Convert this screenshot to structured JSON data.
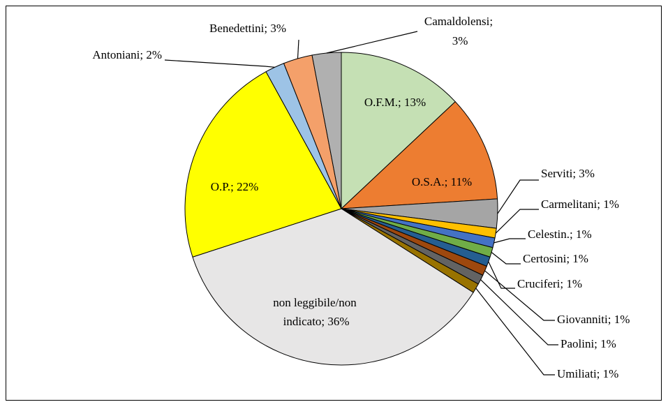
{
  "chart_data": {
    "type": "pie",
    "values": [
      13,
      11,
      3,
      1,
      1,
      1,
      1,
      1,
      1,
      1,
      36,
      22,
      2,
      3,
      3
    ],
    "value_labels": [
      "O.F.M.; 13%",
      "O.S.A.; 11%",
      "Serviti; 3%",
      "Carmelitani; 1%",
      "Celestin.; 1%",
      "Certosini; 1%",
      "Cruciferi; 1%",
      "Giovanniti; 1%",
      "Paolini; 1%",
      "Umiliati; 1%",
      "non leggibile/non indicato; 36%",
      "O.P.; 22%",
      "Antoniani; 2%",
      "Benedettini; 3%",
      "Camaldolensi; 3%"
    ],
    "colors": [
      "#c5e0b4",
      "#ed7d31",
      "#a5a5a5",
      "#ffc000",
      "#4472c4",
      "#70ad47",
      "#255e91",
      "#9e480e",
      "#636363",
      "#997300",
      "#e7e6e6",
      "#ffff00",
      "#9dc3e6",
      "#f4a06a",
      "#b0b0b0"
    ]
  }
}
